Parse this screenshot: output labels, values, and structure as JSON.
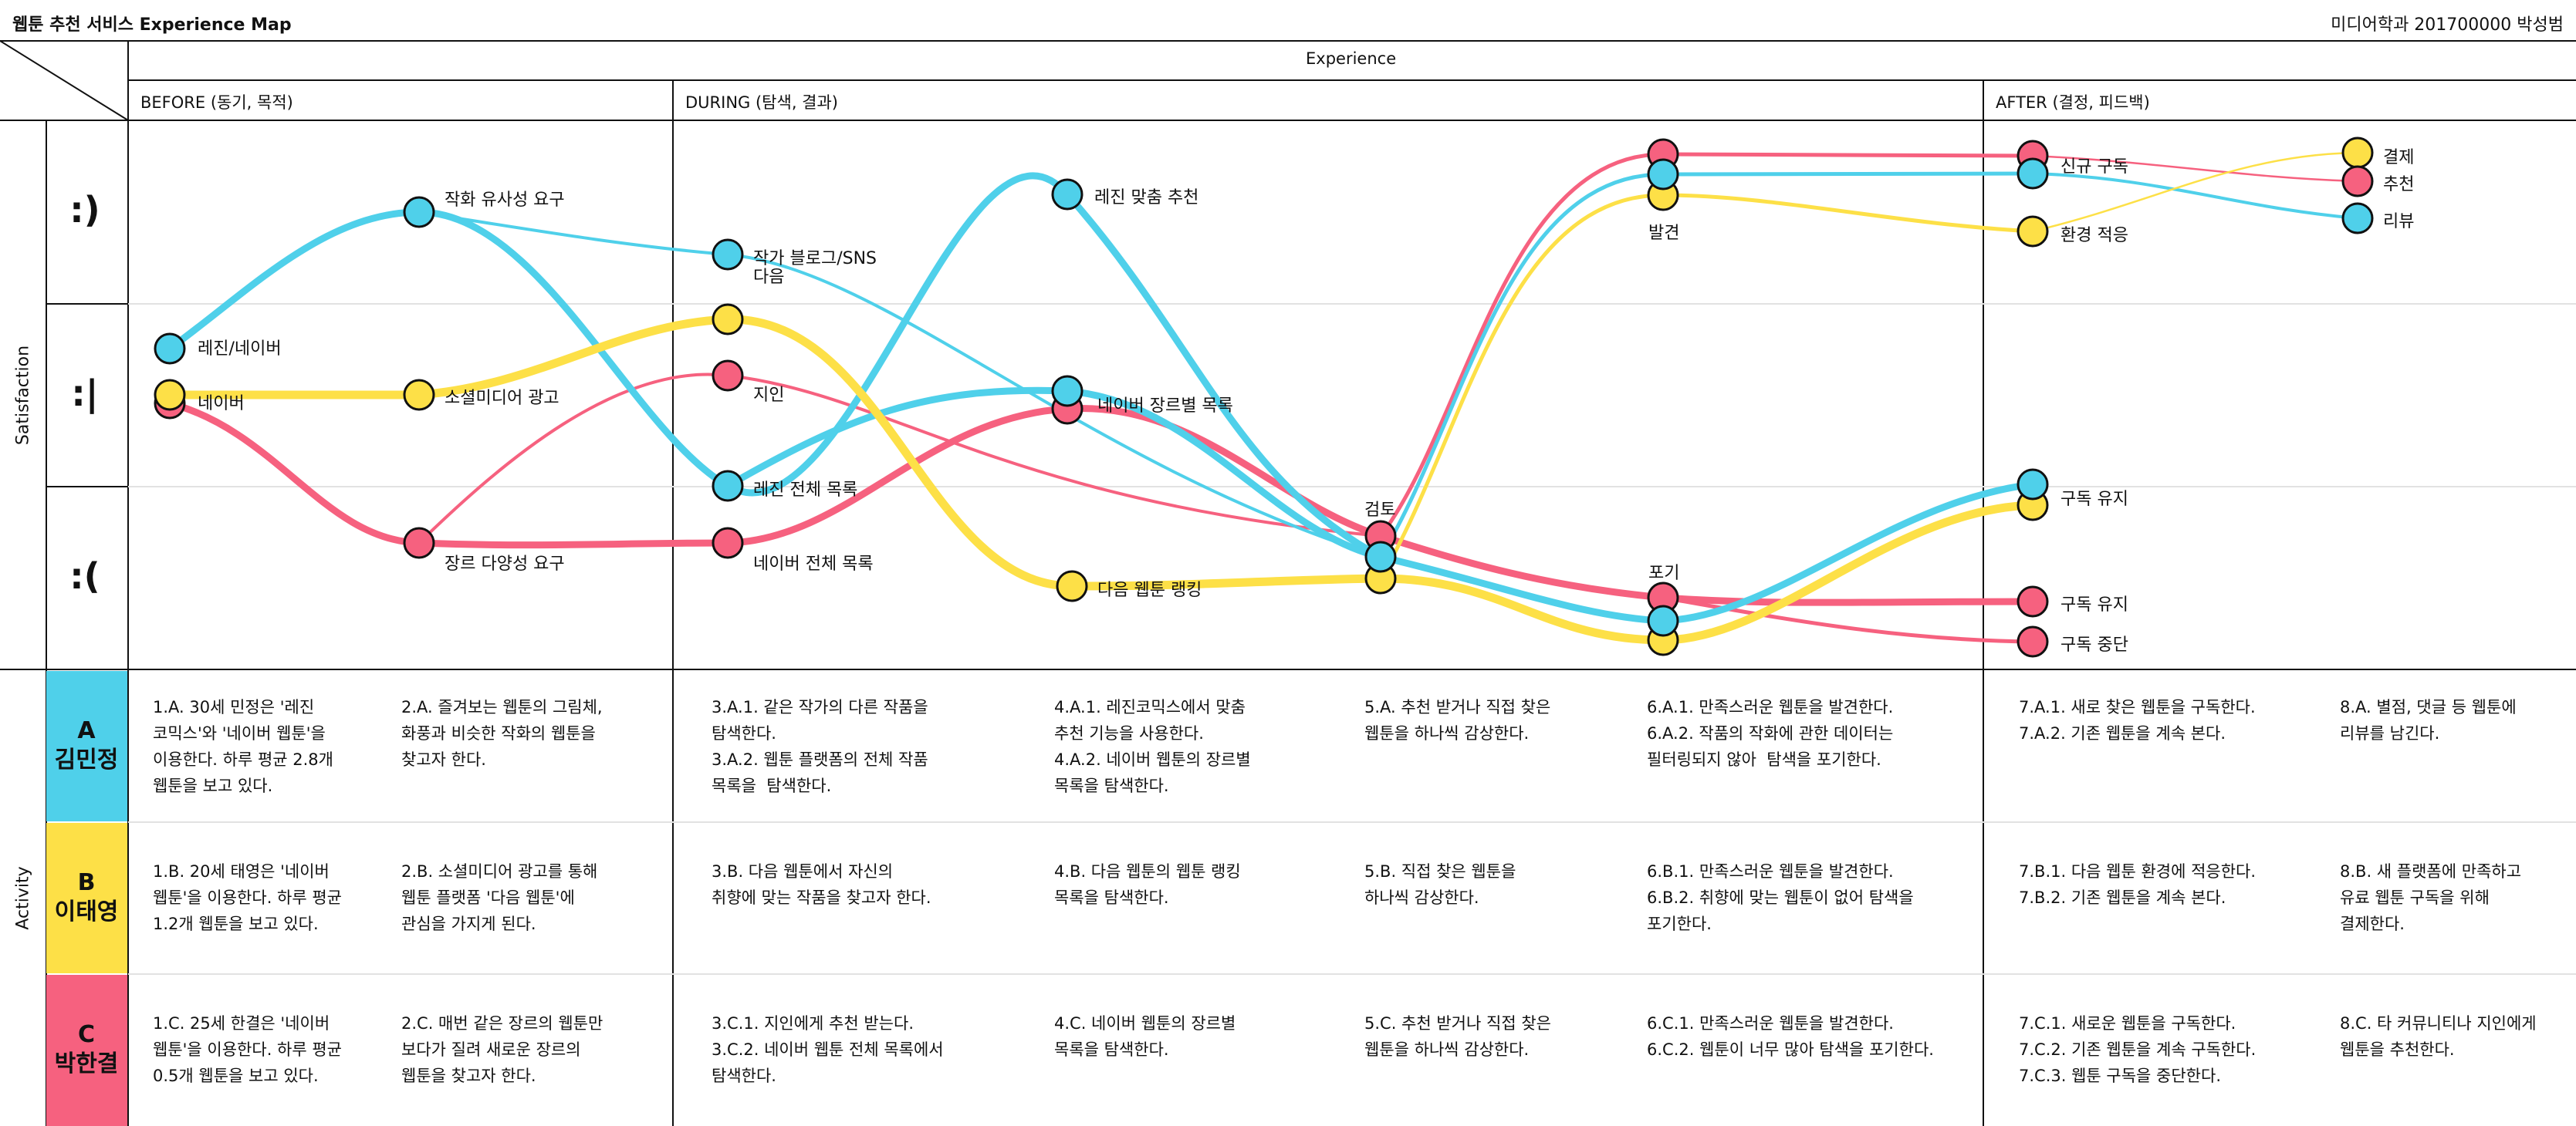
{
  "header": {
    "title": "웹툰 추천 서비스 Experience Map",
    "author": "미디어학과 201700000 박성범"
  },
  "table": {
    "experience_label": "Experience",
    "phases": [
      "BEFORE (동기, 목적)",
      "DURING (탐색, 결과)",
      "AFTER (결정, 피드백)"
    ],
    "satisfaction_label": "Satisfaction",
    "activity_label": "Activity",
    "levels": [
      ":)",
      ":|",
      ":("
    ]
  },
  "colors": {
    "A": "#4fd0ea",
    "B": "#fde047",
    "C": "#f6617f"
  },
  "labels": {
    "l1": "레진/네이버",
    "l2": "네이버",
    "l3": "작화 유사성 요구",
    "l4": "소셜미디어 광고",
    "l5": "장르 다양성 요구",
    "l6": "작가 블로그/SNS",
    "l7": "다음",
    "l8": "지인",
    "l9": "레진 전체 목록",
    "l10": "네이버 전체 목록",
    "l11": "레진 맞춤 추천",
    "l12": "네이버 장르별 목록",
    "l13": "다음 웹툰 랭킹",
    "l14": "검토",
    "l15": "발견",
    "l16": "포기",
    "l17": "신규 구독",
    "l18": "환경 적응",
    "l19": "구독 유지",
    "l20": "구독 유지",
    "l21": "구독 중단",
    "l22": "결제",
    "l23": "추천",
    "l24": "리뷰"
  },
  "personas": [
    {
      "letter": "A",
      "name": "김민정",
      "color": "#4fd0ea",
      "cells": [
        "1.A. 30세 민정은 '레진\n코믹스'와 '네이버 웹툰'을\n이용한다. 하루 평균 2.8개\n웹툰을 보고 있다.",
        "2.A. 즐겨보는 웹툰의 그림체,\n화풍과 비슷한 작화의 웹툰을\n찾고자 한다.",
        "3.A.1. 같은 작가의 다른 작품을\n탐색한다.\n3.A.2. 웹툰 플랫폼의 전체 작품\n목록을  탐색한다.",
        "4.A.1. 레진코믹스에서 맞춤\n추천 기능을 사용한다.\n4.A.2. 네이버 웹툰의 장르별\n목록을 탐색한다.",
        "5.A. 추천 받거나 직접 찾은\n웹툰을 하나씩 감상한다.",
        "6.A.1. 만족스러운 웹툰을 발견한다.\n6.A.2. 작품의 작화에 관한 데이터는\n필터링되지 않아  탐색을 포기한다.",
        "7.A.1. 새로 찾은 웹툰을 구독한다.\n7.A.2. 기존 웹툰을 계속 본다.",
        "8.A. 별점, 댓글 등 웹툰에\n리뷰를 남긴다."
      ]
    },
    {
      "letter": "B",
      "name": "이태영",
      "color": "#fde047",
      "cells": [
        "1.B. 20세 태영은 '네이버\n웹툰'을 이용한다. 하루 평균\n1.2개 웹툰을 보고 있다.",
        "2.B. 소셜미디어 광고를 통해\n웹툰 플랫폼 '다음 웹툰'에\n관심을 가지게 된다.",
        "3.B. 다음 웹툰에서 자신의\n취향에 맞는 작품을 찾고자 한다.",
        "4.B. 다음 웹툰의 웹툰 랭킹\n목록을 탐색한다.",
        "5.B. 직접 찾은 웹툰을\n하나씩 감상한다.",
        "6.B.1. 만족스러운 웹툰을 발견한다.\n6.B.2. 취향에 맞는 웹툰이 없어 탐색을\n포기한다.",
        "7.B.1. 다음 웹툰 환경에 적응한다.\n7.B.2. 기존 웹툰을 계속 본다.",
        "8.B. 새 플랫폼에 만족하고\n유료 웹툰 구독을 위해\n결제한다."
      ]
    },
    {
      "letter": "C",
      "name": "박한결",
      "color": "#f6617f",
      "cells": [
        "1.C. 25세 한결은 '네이버\n웹툰'을 이용한다. 하루 평균\n0.5개 웹툰을 보고 있다.",
        "2.C. 매번 같은 장르의 웹툰만\n보다가 질려 새로운 장르의\n웹툰을 찾고자 한다.",
        "3.C.1. 지인에게 추천 받는다.\n3.C.2. 네이버 웹툰 전체 목록에서\n탐색한다.",
        "4.C. 네이버 웹툰의 장르별\n목록을 탐색한다.",
        "5.C. 추천 받거나 직접 찾은\n웹툰을 하나씩 감상한다.",
        "6.C.1. 만족스러운 웹툰을 발견한다.\n6.C.2. 웹툰이 너무 많아 탐색을 포기한다.",
        "7.C.1. 새로운 웹툰을 구독한다.\n7.C.2. 기존 웹툰을 계속 구독한다.\n7.C.3. 웹툰 구독을 중단한다.",
        "8.C. 타 커뮤니티나 지인에게\n웹툰을 추천한다."
      ]
    }
  ]
}
